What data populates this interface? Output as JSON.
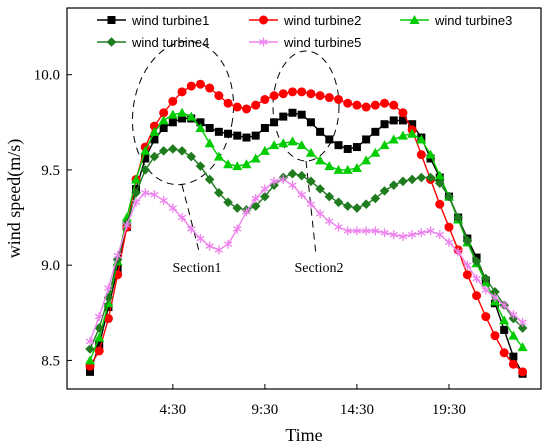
{
  "chart_data": {
    "type": "line",
    "xlabel": "Time",
    "ylabel": "wind speed(m/s)",
    "ylim": [
      8.35,
      10.35
    ],
    "yticks": [
      "8.5",
      "9.0",
      "9.5",
      "10.0"
    ],
    "ytick_values": [
      8.5,
      9.0,
      9.5,
      10.0
    ],
    "xticks": [
      "4:30",
      "9:30",
      "14:30",
      "19:30"
    ],
    "xtick_values": [
      4.5,
      9.5,
      14.5,
      19.5
    ],
    "xlim": [
      -1.25,
      24.5
    ],
    "x": [
      0,
      0.5,
      1,
      1.5,
      2,
      2.5,
      3,
      3.5,
      4,
      4.5,
      5,
      5.5,
      6,
      6.5,
      7,
      7.5,
      8,
      8.5,
      9,
      9.5,
      10,
      10.5,
      11,
      11.5,
      12,
      12.5,
      13,
      13.5,
      14,
      14.5,
      15,
      15.5,
      16,
      16.5,
      17,
      17.5,
      18,
      18.5,
      19,
      19.5,
      20,
      20.5,
      21,
      21.5,
      22,
      22.5,
      23,
      23.5
    ],
    "series": [
      {
        "name": "wind turbine1",
        "color": "#000000",
        "marker": "square",
        "values": [
          8.44,
          8.58,
          8.78,
          8.98,
          9.2,
          9.4,
          9.56,
          9.66,
          9.72,
          9.75,
          9.77,
          9.77,
          9.75,
          9.72,
          9.7,
          9.69,
          9.68,
          9.67,
          9.68,
          9.72,
          9.75,
          9.78,
          9.8,
          9.79,
          9.75,
          9.7,
          9.66,
          9.63,
          9.61,
          9.62,
          9.66,
          9.7,
          9.74,
          9.76,
          9.76,
          9.74,
          9.67,
          9.56,
          9.46,
          9.36,
          9.25,
          9.14,
          9.04,
          8.92,
          8.8,
          8.66,
          8.52,
          8.43
        ]
      },
      {
        "name": "wind turbine2",
        "color": "#ff0000",
        "marker": "circle",
        "values": [
          8.47,
          8.55,
          8.72,
          8.95,
          9.2,
          9.45,
          9.62,
          9.73,
          9.8,
          9.86,
          9.91,
          9.94,
          9.95,
          9.93,
          9.89,
          9.85,
          9.83,
          9.82,
          9.84,
          9.87,
          9.89,
          9.9,
          9.91,
          9.91,
          9.9,
          9.89,
          9.88,
          9.87,
          9.85,
          9.84,
          9.83,
          9.84,
          9.85,
          9.84,
          9.8,
          9.71,
          9.58,
          9.45,
          9.32,
          9.2,
          9.08,
          8.95,
          8.84,
          8.73,
          8.63,
          8.54,
          8.48,
          8.44
        ]
      },
      {
        "name": "wind turbine3",
        "color": "#00cc00",
        "marker": "triangle",
        "values": [
          8.5,
          8.62,
          8.8,
          9.02,
          9.25,
          9.45,
          9.6,
          9.7,
          9.76,
          9.79,
          9.8,
          9.78,
          9.72,
          9.64,
          9.57,
          9.53,
          9.52,
          9.53,
          9.56,
          9.6,
          9.63,
          9.64,
          9.65,
          9.63,
          9.59,
          9.55,
          9.52,
          9.5,
          9.5,
          9.51,
          9.55,
          9.59,
          9.63,
          9.66,
          9.68,
          9.69,
          9.66,
          9.58,
          9.47,
          9.36,
          9.24,
          9.12,
          9.01,
          8.91,
          8.81,
          8.71,
          8.63,
          8.57
        ]
      },
      {
        "name": "wind turbine4",
        "color": "#1e7b1e",
        "marker": "diamond",
        "values": [
          8.56,
          8.67,
          8.83,
          9.03,
          9.22,
          9.38,
          9.5,
          9.57,
          9.6,
          9.61,
          9.6,
          9.57,
          9.52,
          9.45,
          9.38,
          9.33,
          9.3,
          9.29,
          9.31,
          9.36,
          9.42,
          9.46,
          9.48,
          9.47,
          9.44,
          9.4,
          9.36,
          9.33,
          9.31,
          9.3,
          9.32,
          9.35,
          9.39,
          9.42,
          9.44,
          9.45,
          9.46,
          9.46,
          9.43,
          9.36,
          9.25,
          9.13,
          9.02,
          8.93,
          8.86,
          8.79,
          8.72,
          8.67
        ]
      },
      {
        "name": "wind turbine5",
        "color": "#ee82ee",
        "marker": "star",
        "values": [
          8.6,
          8.73,
          8.88,
          9.05,
          9.21,
          9.33,
          9.38,
          9.37,
          9.34,
          9.3,
          9.25,
          9.19,
          9.14,
          9.1,
          9.08,
          9.11,
          9.19,
          9.28,
          9.35,
          9.4,
          9.44,
          9.45,
          9.42,
          9.37,
          9.32,
          9.27,
          9.23,
          9.2,
          9.18,
          9.18,
          9.18,
          9.18,
          9.17,
          9.16,
          9.15,
          9.16,
          9.17,
          9.18,
          9.16,
          9.12,
          9.07,
          9.0,
          8.93,
          8.87,
          8.83,
          8.79,
          8.74,
          8.7
        ]
      }
    ],
    "legend": "top, inside plot",
    "grid": false,
    "annotations": [
      {
        "text": "Section1",
        "shape": "dashed ellipse",
        "x_center": 6.5,
        "y_center": 9.67
      },
      {
        "text": "Section2",
        "shape": "dashed ellipse",
        "x_center": 11.0,
        "y_center": 9.62
      }
    ]
  }
}
